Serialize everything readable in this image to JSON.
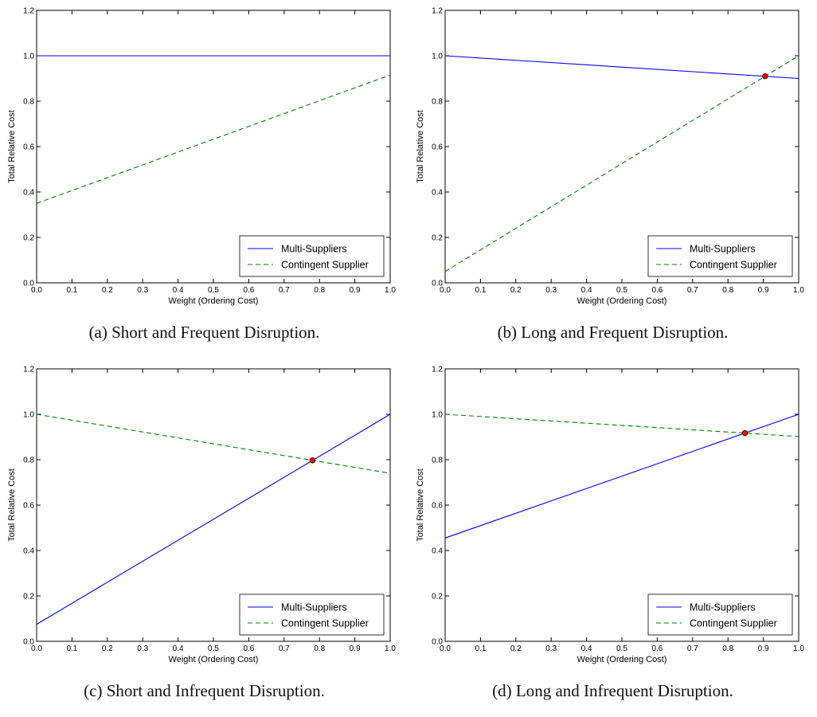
{
  "chart_data": [
    {
      "type": "line",
      "caption": "(a) Short and Frequent Disruption.",
      "xlabel": "Weight (Ordering Cost)",
      "ylabel": "Total Relative Cost",
      "xlim": [
        0.0,
        1.0
      ],
      "ylim": [
        0.0,
        1.2
      ],
      "xticks": [
        "0.0",
        "0.1",
        "0.2",
        "0.3",
        "0.4",
        "0.5",
        "0.6",
        "0.7",
        "0.8",
        "0.9",
        "1.0"
      ],
      "yticks": [
        "0.0",
        "0.2",
        "0.4",
        "0.6",
        "0.8",
        "1.0",
        "1.2"
      ],
      "legend_position": "lower-right",
      "series": [
        {
          "name": "Multi-Suppliers",
          "style": "solid",
          "color": "#0000ff",
          "x": [
            0.0,
            1.0
          ],
          "y": [
            1.0,
            1.0
          ]
        },
        {
          "name": "Contingent Supplier",
          "style": "dashed",
          "color": "#008000",
          "x": [
            0.0,
            1.0
          ],
          "y": [
            0.35,
            0.915
          ]
        }
      ],
      "intersection": null
    },
    {
      "type": "line",
      "caption": "(b) Long and Frequent Disruption.",
      "xlabel": "Weight (Ordering Cost)",
      "ylabel": "Total Relative Cost",
      "xlim": [
        0.0,
        1.0
      ],
      "ylim": [
        0.0,
        1.2
      ],
      "xticks": [
        "0.0",
        "0.1",
        "0.2",
        "0.3",
        "0.4",
        "0.5",
        "0.6",
        "0.7",
        "0.8",
        "0.9",
        "1.0"
      ],
      "yticks": [
        "0.0",
        "0.2",
        "0.4",
        "0.6",
        "0.8",
        "1.0",
        "1.2"
      ],
      "legend_position": "lower-right",
      "series": [
        {
          "name": "Multi-Suppliers",
          "style": "solid",
          "color": "#0000ff",
          "x": [
            0.0,
            1.0
          ],
          "y": [
            1.0,
            0.9
          ]
        },
        {
          "name": "Contingent Supplier",
          "style": "dashed",
          "color": "#008000",
          "x": [
            0.0,
            1.0
          ],
          "y": [
            0.05,
            1.0
          ]
        }
      ],
      "intersection": {
        "x": 0.905,
        "y": 0.91,
        "color": "#ff0000"
      }
    },
    {
      "type": "line",
      "caption": "(c) Short and Infrequent Disruption.",
      "xlabel": "Weight (Ordering Cost)",
      "ylabel": "Total Relative Cost",
      "xlim": [
        0.0,
        1.0
      ],
      "ylim": [
        0.0,
        1.2
      ],
      "xticks": [
        "0.0",
        "0.1",
        "0.2",
        "0.3",
        "0.4",
        "0.5",
        "0.6",
        "0.7",
        "0.8",
        "0.9",
        "1.0"
      ],
      "yticks": [
        "0.0",
        "0.2",
        "0.4",
        "0.6",
        "0.8",
        "1.0",
        "1.2"
      ],
      "legend_position": "lower-right",
      "series": [
        {
          "name": "Multi-Suppliers",
          "style": "solid",
          "color": "#0000ff",
          "x": [
            0.0,
            1.0
          ],
          "y": [
            0.075,
            1.0
          ]
        },
        {
          "name": "Contingent Supplier",
          "style": "dashed",
          "color": "#008000",
          "x": [
            0.0,
            1.0
          ],
          "y": [
            1.0,
            0.74
          ]
        }
      ],
      "intersection": {
        "x": 0.78,
        "y": 0.797,
        "color": "#ff0000"
      }
    },
    {
      "type": "line",
      "caption": "(d) Long and Infrequent Disruption.",
      "xlabel": "Weight (Ordering Cost)",
      "ylabel": "Total Relative Cost",
      "xlim": [
        0.0,
        1.0
      ],
      "ylim": [
        0.0,
        1.2
      ],
      "xticks": [
        "0.0",
        "0.1",
        "0.2",
        "0.3",
        "0.4",
        "0.5",
        "0.6",
        "0.7",
        "0.8",
        "0.9",
        "1.0"
      ],
      "yticks": [
        "0.0",
        "0.2",
        "0.4",
        "0.6",
        "0.8",
        "1.0",
        "1.2"
      ],
      "legend_position": "lower-right",
      "series": [
        {
          "name": "Multi-Suppliers",
          "style": "solid",
          "color": "#0000ff",
          "x": [
            0.0,
            1.0
          ],
          "y": [
            0.455,
            1.0
          ]
        },
        {
          "name": "Contingent Supplier",
          "style": "dashed",
          "color": "#008000",
          "x": [
            0.0,
            1.0
          ],
          "y": [
            1.0,
            0.902
          ]
        }
      ],
      "intersection": {
        "x": 0.848,
        "y": 0.917,
        "color": "#ff0000"
      }
    }
  ]
}
